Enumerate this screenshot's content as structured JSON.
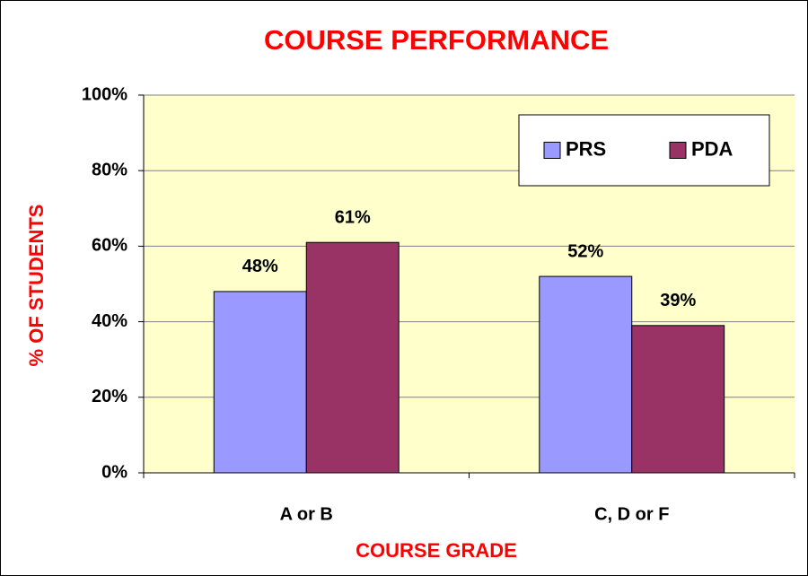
{
  "chart_data": {
    "type": "bar",
    "title": "COURSE PERFORMANCE",
    "xlabel": "COURSE GRADE",
    "ylabel": "% OF STUDENTS",
    "categories": [
      "A or B",
      "C, D or F"
    ],
    "series": [
      {
        "name": "PRS",
        "color": "#9999ff",
        "values": [
          48,
          52
        ],
        "value_labels": [
          "48%",
          "52%"
        ]
      },
      {
        "name": "PDA",
        "color": "#993366",
        "values": [
          61,
          39
        ],
        "value_labels": [
          "61%",
          "39%"
        ]
      }
    ],
    "ylim": [
      0,
      100
    ],
    "yticks": [
      {
        "value": 0,
        "label": "0%"
      },
      {
        "value": 20,
        "label": "20%"
      },
      {
        "value": 40,
        "label": "40%"
      },
      {
        "value": 60,
        "label": "60%"
      },
      {
        "value": 80,
        "label": "80%"
      },
      {
        "value": 100,
        "label": "100%"
      }
    ],
    "grid": true,
    "legend": "upper right"
  }
}
